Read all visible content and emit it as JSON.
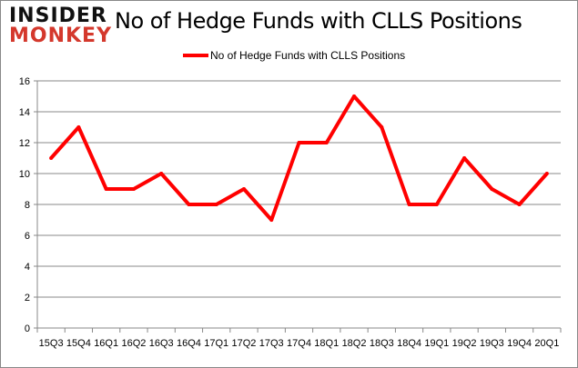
{
  "logo": {
    "line1": "INSIDER",
    "line2": "MONKEY"
  },
  "chart_data": {
    "type": "line",
    "title": "No of Hedge Funds with CLLS Positions",
    "xlabel": "",
    "ylabel": "",
    "categories": [
      "15Q3",
      "15Q4",
      "16Q1",
      "16Q2",
      "16Q3",
      "16Q4",
      "17Q1",
      "17Q2",
      "17Q3",
      "17Q4",
      "18Q1",
      "18Q2",
      "18Q3",
      "18Q4",
      "19Q1",
      "19Q2",
      "19Q3",
      "19Q4",
      "20Q1"
    ],
    "series": [
      {
        "name": "No of Hedge Funds with CLLS Positions",
        "color": "#ff0000",
        "values": [
          11,
          13,
          9,
          9,
          10,
          8,
          8,
          9,
          7,
          12,
          12,
          15,
          13,
          8,
          8,
          11,
          9,
          8,
          10
        ]
      }
    ],
    "ylim": [
      0,
      16
    ],
    "yticks": [
      0,
      2,
      4,
      6,
      8,
      10,
      12,
      14,
      16
    ],
    "grid": true,
    "legend": "top"
  }
}
